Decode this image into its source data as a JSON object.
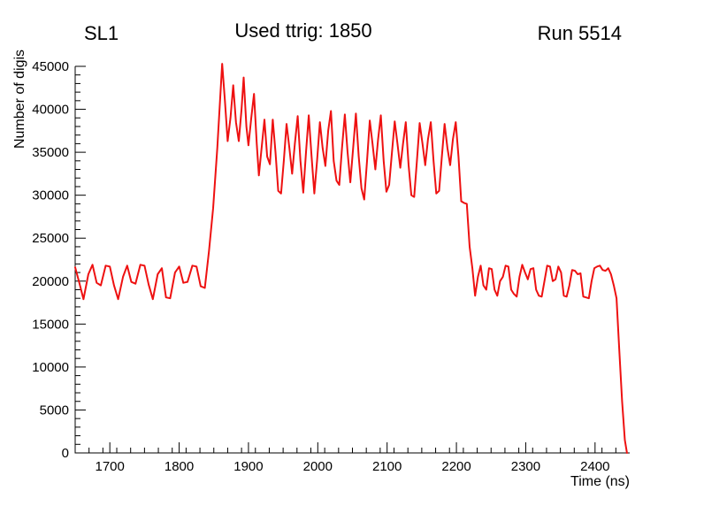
{
  "titles": {
    "left": "SL1",
    "center": "Used ttrig: 1850",
    "right": "Run 5514"
  },
  "chart_data": {
    "type": "line",
    "title": "Used ttrig: 1850",
    "xlabel": "Time (ns)",
    "ylabel": "Number of digis",
    "xlim": [
      1650,
      2450
    ],
    "ylim": [
      0,
      45000
    ],
    "xticks": [
      1700,
      1800,
      1900,
      2000,
      2100,
      2200,
      2300,
      2400
    ],
    "yticks": [
      0,
      5000,
      10000,
      15000,
      20000,
      25000,
      30000,
      35000,
      40000,
      45000
    ],
    "x_minor_step": 20,
    "y_minor_step": 1000,
    "grid": false,
    "legend": "none",
    "line_color": "#ee1111",
    "points": [
      [
        1650,
        21600
      ],
      [
        1656,
        19800
      ],
      [
        1662,
        17900
      ],
      [
        1669,
        20800
      ],
      [
        1675,
        21900
      ],
      [
        1681,
        19800
      ],
      [
        1687,
        19500
      ],
      [
        1694,
        21800
      ],
      [
        1700,
        21700
      ],
      [
        1706,
        19500
      ],
      [
        1712,
        17900
      ],
      [
        1719,
        20500
      ],
      [
        1725,
        21800
      ],
      [
        1731,
        19900
      ],
      [
        1737,
        19700
      ],
      [
        1744,
        21900
      ],
      [
        1750,
        21800
      ],
      [
        1756,
        19600
      ],
      [
        1762,
        17900
      ],
      [
        1769,
        20800
      ],
      [
        1775,
        21500
      ],
      [
        1781,
        18100
      ],
      [
        1787,
        18000
      ],
      [
        1794,
        21000
      ],
      [
        1800,
        21700
      ],
      [
        1806,
        19800
      ],
      [
        1812,
        19900
      ],
      [
        1819,
        21800
      ],
      [
        1825,
        21700
      ],
      [
        1831,
        19400
      ],
      [
        1837,
        19200
      ],
      [
        1843,
        23500
      ],
      [
        1849,
        28500
      ],
      [
        1855,
        35500
      ],
      [
        1862,
        45300
      ],
      [
        1866,
        41000
      ],
      [
        1870,
        36300
      ],
      [
        1874,
        39000
      ],
      [
        1878,
        42800
      ],
      [
        1882,
        38500
      ],
      [
        1886,
        36300
      ],
      [
        1890,
        40000
      ],
      [
        1893,
        43700
      ],
      [
        1897,
        38000
      ],
      [
        1900,
        35800
      ],
      [
        1904,
        39000
      ],
      [
        1908,
        41800
      ],
      [
        1912,
        36000
      ],
      [
        1915,
        32300
      ],
      [
        1919,
        35500
      ],
      [
        1923,
        38800
      ],
      [
        1927,
        34500
      ],
      [
        1931,
        33600
      ],
      [
        1935,
        38800
      ],
      [
        1939,
        35000
      ],
      [
        1943,
        30500
      ],
      [
        1947,
        30200
      ],
      [
        1951,
        34000
      ],
      [
        1955,
        38300
      ],
      [
        1959,
        35500
      ],
      [
        1963,
        32500
      ],
      [
        1967,
        36000
      ],
      [
        1971,
        39200
      ],
      [
        1975,
        34000
      ],
      [
        1979,
        30300
      ],
      [
        1983,
        35000
      ],
      [
        1987,
        39300
      ],
      [
        1991,
        34500
      ],
      [
        1995,
        30200
      ],
      [
        1999,
        34000
      ],
      [
        2003,
        38500
      ],
      [
        2007,
        35500
      ],
      [
        2011,
        33400
      ],
      [
        2015,
        37500
      ],
      [
        2019,
        39800
      ],
      [
        2023,
        34000
      ],
      [
        2027,
        31700
      ],
      [
        2031,
        31200
      ],
      [
        2035,
        35500
      ],
      [
        2039,
        39400
      ],
      [
        2043,
        35000
      ],
      [
        2047,
        31500
      ],
      [
        2051,
        35500
      ],
      [
        2055,
        39500
      ],
      [
        2059,
        34500
      ],
      [
        2063,
        30800
      ],
      [
        2067,
        29500
      ],
      [
        2071,
        34000
      ],
      [
        2075,
        38700
      ],
      [
        2079,
        36000
      ],
      [
        2083,
        33000
      ],
      [
        2087,
        36500
      ],
      [
        2091,
        39300
      ],
      [
        2095,
        34000
      ],
      [
        2099,
        30400
      ],
      [
        2103,
        31200
      ],
      [
        2107,
        35000
      ],
      [
        2111,
        38600
      ],
      [
        2115,
        36000
      ],
      [
        2119,
        33200
      ],
      [
        2123,
        36000
      ],
      [
        2127,
        38500
      ],
      [
        2131,
        33500
      ],
      [
        2135,
        30000
      ],
      [
        2139,
        29800
      ],
      [
        2143,
        34000
      ],
      [
        2147,
        38400
      ],
      [
        2151,
        36000
      ],
      [
        2155,
        33500
      ],
      [
        2159,
        36500
      ],
      [
        2163,
        38500
      ],
      [
        2167,
        34000
      ],
      [
        2171,
        30200
      ],
      [
        2175,
        30500
      ],
      [
        2179,
        34500
      ],
      [
        2183,
        38300
      ],
      [
        2187,
        35500
      ],
      [
        2191,
        33500
      ],
      [
        2195,
        36500
      ],
      [
        2199,
        38500
      ],
      [
        2203,
        34500
      ],
      [
        2207,
        29300
      ],
      [
        2211,
        29100
      ],
      [
        2215,
        29000
      ],
      [
        2219,
        24000
      ],
      [
        2223,
        21500
      ],
      [
        2227,
        18300
      ],
      [
        2231,
        20500
      ],
      [
        2235,
        21800
      ],
      [
        2239,
        19500
      ],
      [
        2243,
        19000
      ],
      [
        2247,
        21500
      ],
      [
        2251,
        21400
      ],
      [
        2255,
        19000
      ],
      [
        2259,
        18300
      ],
      [
        2263,
        20000
      ],
      [
        2267,
        20500
      ],
      [
        2271,
        21800
      ],
      [
        2275,
        21700
      ],
      [
        2279,
        19000
      ],
      [
        2283,
        18500
      ],
      [
        2287,
        18200
      ],
      [
        2291,
        20500
      ],
      [
        2295,
        21900
      ],
      [
        2299,
        21000
      ],
      [
        2303,
        20200
      ],
      [
        2307,
        21400
      ],
      [
        2311,
        21500
      ],
      [
        2315,
        19000
      ],
      [
        2319,
        18300
      ],
      [
        2323,
        18200
      ],
      [
        2327,
        20000
      ],
      [
        2331,
        21800
      ],
      [
        2335,
        21700
      ],
      [
        2339,
        20000
      ],
      [
        2343,
        20200
      ],
      [
        2347,
        21700
      ],
      [
        2351,
        21000
      ],
      [
        2355,
        18300
      ],
      [
        2359,
        18200
      ],
      [
        2363,
        19500
      ],
      [
        2367,
        21300
      ],
      [
        2371,
        21200
      ],
      [
        2375,
        20800
      ],
      [
        2379,
        20900
      ],
      [
        2383,
        18200
      ],
      [
        2387,
        18100
      ],
      [
        2391,
        18000
      ],
      [
        2395,
        20000
      ],
      [
        2399,
        21500
      ],
      [
        2403,
        21700
      ],
      [
        2407,
        21800
      ],
      [
        2411,
        21300
      ],
      [
        2415,
        21200
      ],
      [
        2419,
        21500
      ],
      [
        2423,
        20800
      ],
      [
        2427,
        19500
      ],
      [
        2431,
        18000
      ],
      [
        2435,
        12000
      ],
      [
        2439,
        6000
      ],
      [
        2443,
        1500
      ],
      [
        2446,
        0
      ]
    ]
  }
}
